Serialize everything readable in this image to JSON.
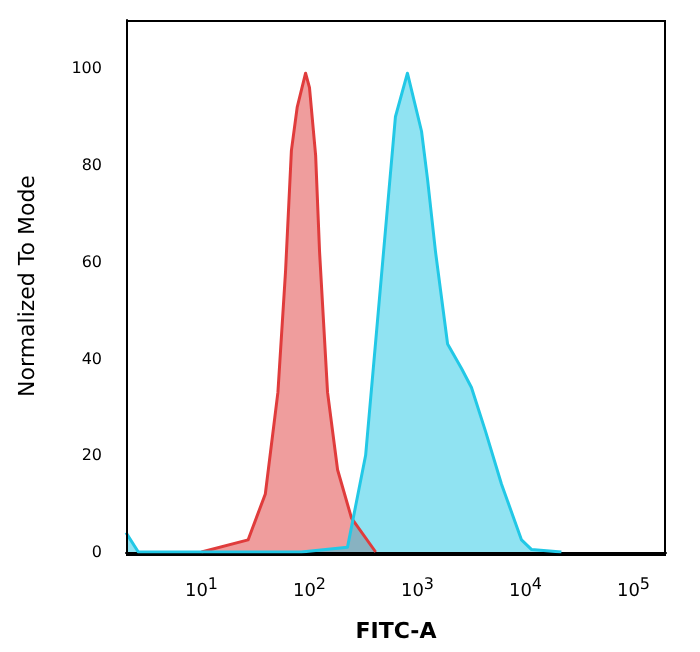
{
  "chart_data": {
    "type": "area",
    "xlabel": "FITC-A",
    "ylabel": "Normalized To Mode",
    "log": "x",
    "xlim": [
      2,
      200000
    ],
    "xticks": [
      {
        "value": 10,
        "label": "10$^{1}$"
      },
      {
        "value": 100,
        "label": "10$^{2}$"
      },
      {
        "value": 1000,
        "label": "10$^{3}$"
      },
      {
        "value": 10000,
        "label": "10$^{4}$"
      },
      {
        "value": 100000,
        "label": "10$^{5}$"
      }
    ],
    "ylim": [
      0,
      110
    ],
    "yticks": [
      0,
      20,
      40,
      60,
      80,
      100
    ],
    "grid": false,
    "marker": "none",
    "line_style": "solid",
    "series": [
      {
        "color": "#e03c3c",
        "x": [
          10,
          27,
          39,
          51,
          60,
          68,
          77,
          92,
          100,
          114,
          124,
          147,
          182,
          245,
          410
        ],
        "values": [
          0,
          2.5,
          12,
          33,
          58,
          83,
          92,
          99,
          96,
          82,
          62,
          33,
          17,
          7,
          0
        ]
      },
      {
        "color": "#22c8e6",
        "x": [
          2,
          2.6,
          84,
          225,
          331,
          427,
          625,
          807,
          1090,
          1240,
          1470,
          1900,
          2550,
          3160,
          4260,
          6000,
          9190,
          11400,
          21500
        ],
        "values": [
          4,
          0,
          0,
          1,
          20,
          48,
          90,
          99,
          87,
          77,
          62,
          43,
          38,
          34,
          25,
          14,
          2.5,
          0.5,
          0
        ]
      }
    ]
  }
}
